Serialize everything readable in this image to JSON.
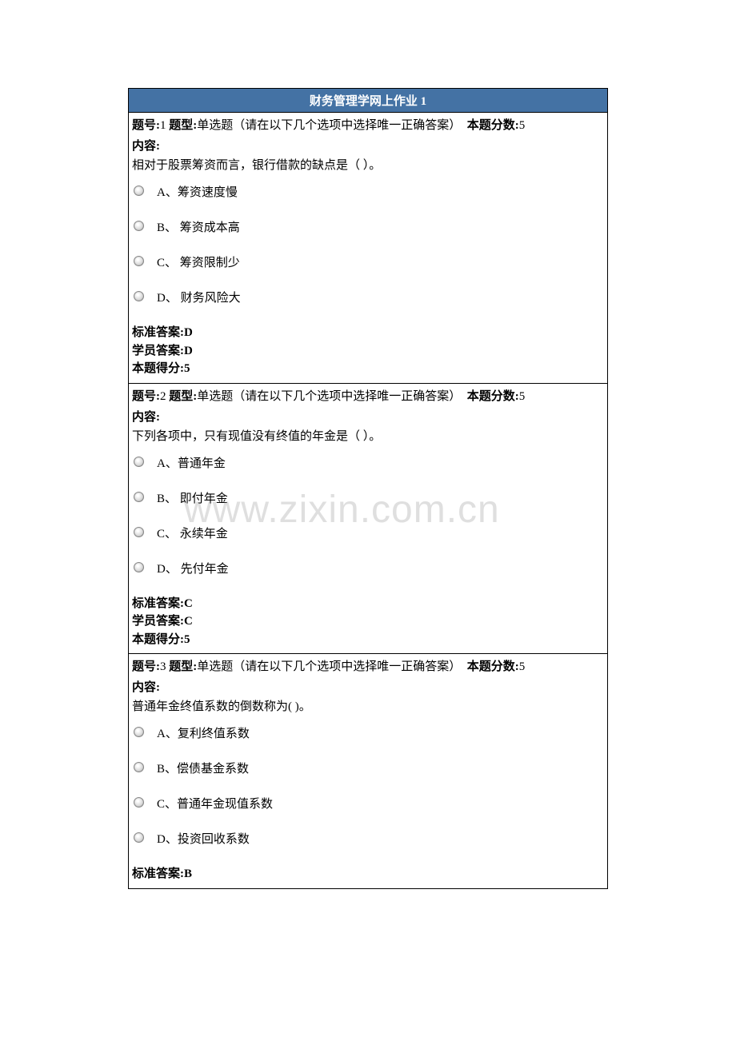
{
  "header": {
    "title": "财务管理学网上作业 1"
  },
  "watermark": "www.zixin.com.cn",
  "questions": [
    {
      "number_label": "题号:",
      "number": "1",
      "type_label": "题型:",
      "type": "单选题（请在以下几个选项中选择唯一正确答案）",
      "score_label": "本题分数:",
      "score": "5",
      "content_label": "内容:",
      "content": "相对于股票筹资而言，银行借款的缺点是（ ）。",
      "options": [
        {
          "label": "A、筹资速度慢"
        },
        {
          "label": "B、 筹资成本高"
        },
        {
          "label": "C、 筹资限制少"
        },
        {
          "label": "D、 财务风险大"
        }
      ],
      "std_answer_label": "标准答案:",
      "std_answer": "D",
      "stu_answer_label": "学员答案:",
      "stu_answer": "D",
      "got_score_label": "本题得分:",
      "got_score": "5"
    },
    {
      "number_label": "题号:",
      "number": "2",
      "type_label": "题型:",
      "type": "单选题（请在以下几个选项中选择唯一正确答案）",
      "score_label": "本题分数:",
      "score": "5",
      "content_label": "内容:",
      "content": "下列各项中，只有现值没有终值的年金是（ ）。",
      "options": [
        {
          "label": "A、普通年金"
        },
        {
          "label": "B、 即付年金"
        },
        {
          "label": "C、 永续年金"
        },
        {
          "label": "D、 先付年金"
        }
      ],
      "std_answer_label": "标准答案:",
      "std_answer": "C",
      "stu_answer_label": "学员答案:",
      "stu_answer": "C",
      "got_score_label": "本题得分:",
      "got_score": "5"
    },
    {
      "number_label": "题号:",
      "number": "3",
      "type_label": "题型:",
      "type": "单选题（请在以下几个选项中选择唯一正确答案）",
      "score_label": "本题分数:",
      "score": "5",
      "content_label": "内容:",
      "content": "普通年金终值系数的倒数称为( )。",
      "options": [
        {
          "label": "A、复利终值系数"
        },
        {
          "label": "B、偿债基金系数"
        },
        {
          "label": "C、普通年金现值系数"
        },
        {
          "label": "D、投资回收系数"
        }
      ],
      "std_answer_label": "标准答案:",
      "std_answer": "B",
      "stu_answer_label": "",
      "stu_answer": "",
      "got_score_label": "",
      "got_score": ""
    }
  ]
}
